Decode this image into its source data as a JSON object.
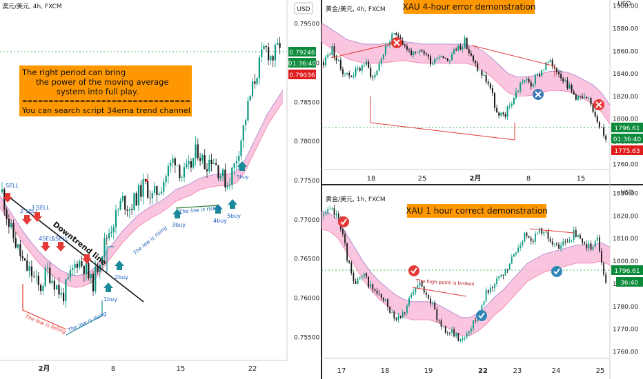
{
  "colors": {
    "up": "#26a69a",
    "down": "#ef5350",
    "candle_up": "#089981",
    "candle_down": "#1a1a1a",
    "band_fill": "#f8bbd9",
    "band_upper": "#7e57c2",
    "band_lower": "#ec407a",
    "note_bg": "#ff9800",
    "price_green": "#0a8a3a",
    "price_red": "#e01b1b",
    "dotted_line": "#4caf50"
  },
  "left": {
    "header": "澳元/美元, 4h, FXCM",
    "currency_label": "USD",
    "price_ticks": [
      "0.79500",
      "0.79000",
      "0.78500",
      "0.78000",
      "0.77500",
      "0.77000",
      "0.76500",
      "0.76000",
      "0.75500"
    ],
    "x_ticks": [
      "2月",
      "8",
      "15",
      "22"
    ],
    "price_tags": {
      "current": "0.79246",
      "countdown": "01:36:40",
      "low": "0.79036"
    },
    "note": {
      "line1": "The right period can bring",
      "line2": "the power of the moving average",
      "line3": "system into full play.",
      "line4": "================================",
      "line5": "You can search script 34ema trend channel"
    },
    "signals_sell": [
      "SELL",
      "2 SELL",
      "3 SELL",
      "4SELL",
      "5SELL"
    ],
    "signals_buy": [
      "1buy",
      "2buy",
      "3buy",
      "4buy",
      "5buy"
    ],
    "labels": {
      "downtrend": "Downtrend line",
      "low_falling": "The low is falling",
      "low_rising_1": "The low is rising",
      "low_rising_2": "The low is rising",
      "low_rising_3": "The low is rising"
    }
  },
  "top_right": {
    "header": "黄金/美元, 4h, FXCM",
    "title": "XAU 4-hour error demonstration",
    "currency_label": "USD",
    "price_ticks": [
      "1900.00",
      "1880.00",
      "1860.00",
      "1840.00",
      "1820.00",
      "1800.00",
      "1780.00",
      "1760.00"
    ],
    "x_ticks": [
      "18",
      "25",
      "2月",
      "8",
      "15"
    ],
    "price_tags": {
      "current": "1796.61",
      "countdown": "01:36:40",
      "low": "1775.63"
    }
  },
  "bottom_right": {
    "header": "黄金/美元, 1h, FXCM",
    "title": "XAU 1 hour correct demonstration",
    "currency_label": "USD",
    "price_ticks": [
      "1830.00",
      "1820.00",
      "1810.00",
      "1800.00",
      "1790.00",
      "1780.00",
      "1770.00",
      "1760.00"
    ],
    "x_ticks": [
      "17",
      "18",
      "19",
      "22",
      "23",
      "24",
      "25"
    ],
    "price_tags": {
      "current": "1796.61",
      "countdown": "36:40"
    },
    "labels": {
      "high_broken": "The high point is broken"
    }
  },
  "chart_data": [
    {
      "type": "candlestick",
      "title": "澳元/美元, 4h, FXCM",
      "ylabel": "USD",
      "ylim": [
        0.752,
        0.798
      ],
      "x_ticks": [
        "2月",
        "8",
        "15",
        "22"
      ],
      "close_path": [
        0.7735,
        0.769,
        0.7665,
        0.764,
        0.763,
        0.761,
        0.7635,
        0.762,
        0.76,
        0.7625,
        0.7648,
        0.764,
        0.7615,
        0.765,
        0.768,
        0.77,
        0.7725,
        0.7715,
        0.773,
        0.7745,
        0.7728,
        0.774,
        0.776,
        0.778,
        0.7755,
        0.7765,
        0.779,
        0.777,
        0.778,
        0.776,
        0.7745,
        0.777,
        0.781,
        0.7855,
        0.789,
        0.792,
        0.7905,
        0.7924
      ],
      "band_upper": [
        0.773,
        0.7715,
        0.77,
        0.7685,
        0.7672,
        0.766,
        0.765,
        0.7642,
        0.7635,
        0.763,
        0.7628,
        0.763,
        0.7635,
        0.7645,
        0.766,
        0.7672,
        0.7685,
        0.7695,
        0.7705,
        0.7712,
        0.7718,
        0.7723,
        0.773,
        0.7738,
        0.7742,
        0.7746,
        0.7752,
        0.7755,
        0.7757,
        0.7758,
        0.7758,
        0.7762,
        0.7775,
        0.7795,
        0.7815,
        0.7835,
        0.785,
        0.7865
      ],
      "band_lower": [
        0.7715,
        0.77,
        0.7685,
        0.767,
        0.7657,
        0.7645,
        0.7635,
        0.7627,
        0.762,
        0.7615,
        0.7613,
        0.7615,
        0.762,
        0.763,
        0.7645,
        0.7657,
        0.767,
        0.768,
        0.769,
        0.7697,
        0.7703,
        0.7708,
        0.7715,
        0.7723,
        0.7727,
        0.7731,
        0.7737,
        0.774,
        0.7742,
        0.7743,
        0.7743,
        0.7747,
        0.776,
        0.778,
        0.78,
        0.782,
        0.7835,
        0.785
      ],
      "last_price": 0.79246
    },
    {
      "type": "candlestick",
      "title": "黄金/美元, 4h, FXCM",
      "ylabel": "USD",
      "ylim": [
        1755,
        1905
      ],
      "x_ticks": [
        "18",
        "25",
        "2月",
        "8",
        "15"
      ],
      "close_path": [
        1850,
        1862,
        1845,
        1838,
        1842,
        1850,
        1835,
        1855,
        1870,
        1875,
        1862,
        1855,
        1860,
        1850,
        1858,
        1852,
        1862,
        1868,
        1850,
        1840,
        1830,
        1800,
        1805,
        1820,
        1835,
        1830,
        1840,
        1850,
        1845,
        1835,
        1822,
        1818,
        1815,
        1800,
        1780
      ],
      "band_upper": [
        1885,
        1880,
        1875,
        1870,
        1868,
        1866,
        1866,
        1866,
        1867,
        1868,
        1868,
        1867,
        1866,
        1866,
        1866,
        1866,
        1866,
        1866,
        1864,
        1860,
        1854,
        1847,
        1840,
        1837,
        1837,
        1838,
        1840,
        1842,
        1842,
        1841,
        1838,
        1834,
        1830,
        1823,
        1812
      ],
      "band_lower": [
        1868,
        1863,
        1858,
        1853,
        1851,
        1849,
        1849,
        1849,
        1850,
        1851,
        1851,
        1850,
        1849,
        1849,
        1849,
        1849,
        1849,
        1849,
        1847,
        1843,
        1837,
        1830,
        1823,
        1820,
        1820,
        1821,
        1823,
        1825,
        1825,
        1824,
        1821,
        1817,
        1813,
        1806,
        1795
      ],
      "last_price": 1796.61
    },
    {
      "type": "candlestick",
      "title": "黄金/美元, 1h, FXCM",
      "ylabel": "USD",
      "ylim": [
        1757,
        1833
      ],
      "x_ticks": [
        "17",
        "18",
        "19",
        "22",
        "23",
        "24",
        "25"
      ],
      "close_path": [
        1820,
        1822,
        1818,
        1800,
        1790,
        1793,
        1788,
        1784,
        1780,
        1775,
        1778,
        1785,
        1790,
        1785,
        1775,
        1770,
        1768,
        1765,
        1770,
        1775,
        1785,
        1790,
        1792,
        1798,
        1805,
        1812,
        1810,
        1814,
        1810,
        1805,
        1808,
        1812,
        1808,
        1806,
        1809,
        1790
      ],
      "band_upper": [
        1822,
        1821,
        1818,
        1812,
        1806,
        1800,
        1795,
        1791,
        1788,
        1785,
        1783,
        1782,
        1782,
        1782,
        1781,
        1779,
        1777,
        1775,
        1775,
        1777,
        1780,
        1784,
        1787,
        1791,
        1795,
        1799,
        1801,
        1803,
        1804,
        1805,
        1806,
        1807,
        1807,
        1807,
        1808,
        1806
      ],
      "band_lower": [
        1814,
        1813,
        1810,
        1804,
        1798,
        1792,
        1787,
        1783,
        1780,
        1777,
        1775,
        1774,
        1774,
        1774,
        1773,
        1771,
        1769,
        1767,
        1767,
        1769,
        1772,
        1776,
        1779,
        1783,
        1787,
        1791,
        1793,
        1795,
        1796,
        1797,
        1798,
        1799,
        1799,
        1799,
        1800,
        1798
      ],
      "last_price": 1796.61
    }
  ]
}
